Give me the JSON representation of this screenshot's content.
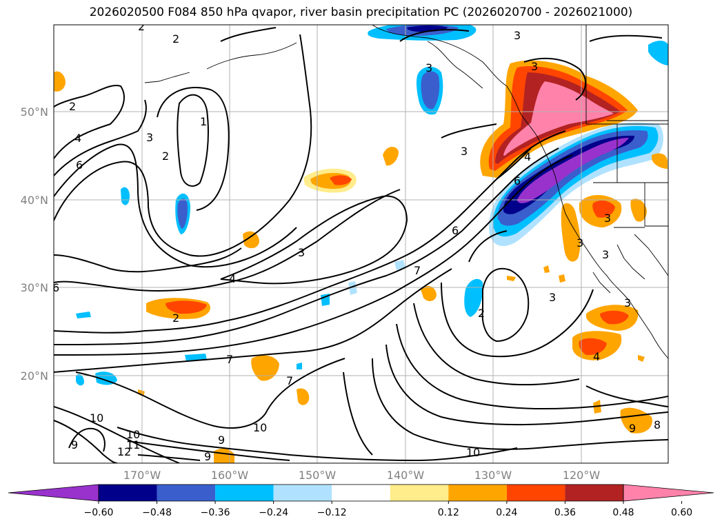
{
  "title": "2026020500 F084 850 hPa qvapor, river basin precipitation PC (2026020700 - 2026021000)",
  "lat_labels": [
    "50°N",
    "40°N",
    "30°N",
    "20°N"
  ],
  "lon_labels": [
    "170°W",
    "160°W",
    "150°W",
    "140°W",
    "130°W",
    "120°W"
  ],
  "colorbar": {
    "colors": [
      "#9932cc",
      "#00008b",
      "#3a5fcd",
      "#00bfff",
      "#b0e2ff",
      "#ffffff",
      "#ffec8b",
      "#ffa500",
      "#ff4500",
      "#b22222",
      "#ff82ab"
    ],
    "tick_labels": [
      "−0.60",
      "−0.48",
      "−0.36",
      "−0.24",
      "−0.12",
      "0.12",
      "0.24",
      "0.36",
      "0.48",
      "0.60"
    ]
  },
  "contour_labels": [
    "2",
    "2",
    "2",
    "1",
    "2",
    "3",
    "4",
    "6",
    "3",
    "3",
    "3",
    "3",
    "3",
    "6",
    "3",
    "4",
    "7",
    "6",
    "2",
    "2",
    "3",
    "4",
    "3",
    "3",
    "3",
    "7",
    "6",
    "7",
    "10",
    "10",
    "11",
    "12",
    "9",
    "10",
    "9",
    "10",
    "9",
    "8",
    "9",
    "4"
  ]
}
